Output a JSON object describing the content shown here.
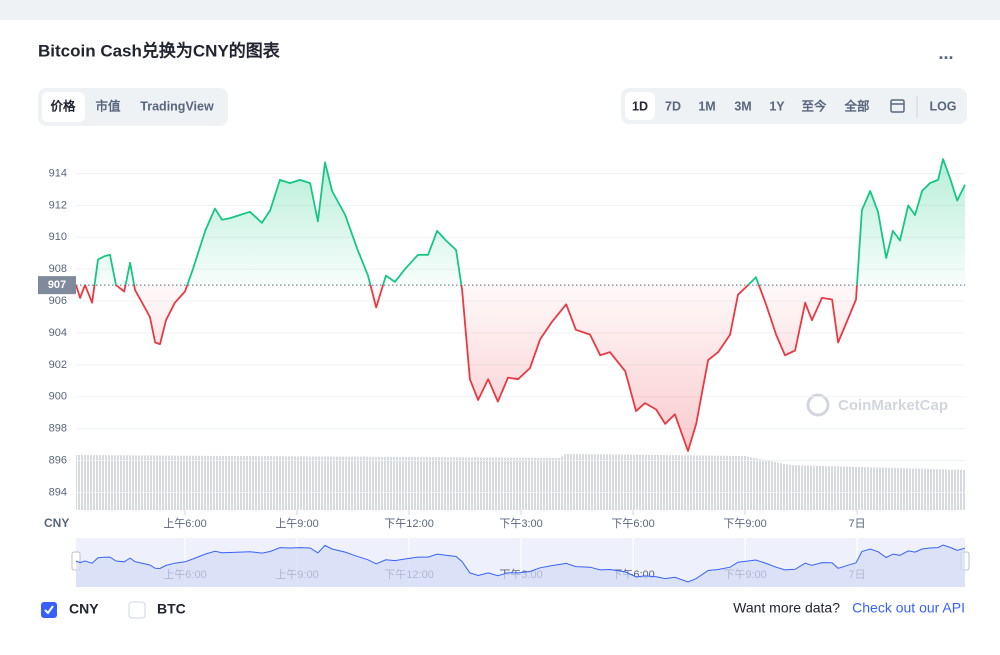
{
  "chart_data": {
    "type": "line",
    "title": "Bitcoin Cash兑换为CNY的图表",
    "currency_label": "CNY",
    "x": [
      3.08,
      3.19,
      3.32,
      3.51,
      3.67,
      3.83,
      3.99,
      4.15,
      4.37,
      4.53,
      4.66,
      4.85,
      5.06,
      5.2,
      5.33,
      5.49,
      5.73,
      6.0,
      6.21,
      6.54,
      6.8,
      6.99,
      7.21,
      7.47,
      7.74,
      8.06,
      8.28,
      8.54,
      8.81,
      9.08,
      9.35,
      9.56,
      9.75,
      9.94,
      10.29,
      10.61,
      10.9,
      11.12,
      11.38,
      11.62,
      11.89,
      12.24,
      12.51,
      12.75,
      12.99,
      13.26,
      13.42,
      13.63,
      13.85,
      14.12,
      14.38,
      14.65,
      14.92,
      15.24,
      15.51,
      15.83,
      16.21,
      16.47,
      16.85,
      17.12,
      17.38,
      17.79,
      18.08,
      18.32,
      18.62,
      18.86,
      19.12,
      19.47,
      19.69,
      20.01,
      20.28,
      20.6,
      20.81,
      21.08,
      21.29,
      21.56,
      21.83,
      22.07,
      22.34,
      22.61,
      22.79,
      23.06,
      23.33,
      23.49,
      23.76,
      23.97,
      24.13,
      24.35,
      24.56,
      24.78,
      24.96,
      25.15,
      25.37,
      25.55,
      25.74,
      25.95,
      26.17,
      26.3,
      26.49,
      26.68,
      26.89
    ],
    "series": [
      {
        "name": "CNY",
        "values": [
          907.0,
          906.2,
          907.0,
          905.9,
          908.6,
          908.8,
          908.9,
          907.0,
          906.6,
          908.4,
          906.7,
          905.9,
          905.0,
          903.4,
          903.3,
          904.8,
          905.9,
          906.6,
          908.0,
          910.4,
          911.8,
          911.1,
          911.2,
          911.4,
          911.6,
          910.9,
          911.7,
          913.6,
          913.4,
          913.6,
          913.4,
          911.0,
          914.7,
          912.9,
          911.4,
          909.3,
          907.6,
          905.6,
          907.6,
          907.2,
          908.0,
          908.9,
          908.9,
          910.4,
          909.8,
          909.2,
          906.7,
          901.1,
          899.8,
          901.1,
          899.7,
          901.2,
          901.1,
          901.8,
          903.6,
          904.7,
          905.8,
          904.2,
          903.9,
          902.6,
          902.8,
          901.6,
          899.1,
          899.6,
          899.2,
          898.3,
          898.9,
          896.6,
          898.3,
          902.3,
          902.8,
          903.9,
          906.4,
          907.0,
          907.5,
          905.8,
          903.9,
          902.6,
          902.9,
          905.9,
          904.8,
          906.2,
          906.1,
          903.4,
          904.9,
          906.1,
          911.7,
          912.9,
          911.6,
          908.7,
          910.4,
          909.8,
          912.0,
          911.4,
          912.9,
          913.4,
          913.6,
          914.9,
          913.7,
          912.3,
          913.3
        ]
      }
    ],
    "baseline": 907,
    "up_color": "#16c784",
    "down_color": "#ea3943",
    "xlim": [
      3.08,
      26.89
    ],
    "xticks": [
      {
        "value": 6,
        "label": "上午6:00"
      },
      {
        "value": 9,
        "label": "上午9:00"
      },
      {
        "value": 12,
        "label": "下午12:00"
      },
      {
        "value": 15,
        "label": "下午3:00"
      },
      {
        "value": 18,
        "label": "下午6:00"
      },
      {
        "value": 21,
        "label": "下午9:00"
      },
      {
        "value": 24,
        "label": "7日"
      }
    ],
    "ylim": [
      892.9,
      916.1
    ],
    "yticks": [
      894,
      896,
      898,
      900,
      902,
      904,
      906,
      908,
      910,
      912,
      914
    ],
    "grid": true,
    "legend": [
      "CNY",
      "BTC"
    ],
    "watermark": "CoinMarketCap"
  },
  "ui": {
    "more": "...",
    "tabs": [
      "价格",
      "市值",
      "TradingView"
    ],
    "ranges": [
      "1D",
      "7D",
      "1M",
      "3M",
      "1Y",
      "至今",
      "全部"
    ],
    "log": "LOG",
    "footer_text": "Want more data?",
    "footer_link": "Check out our API"
  }
}
